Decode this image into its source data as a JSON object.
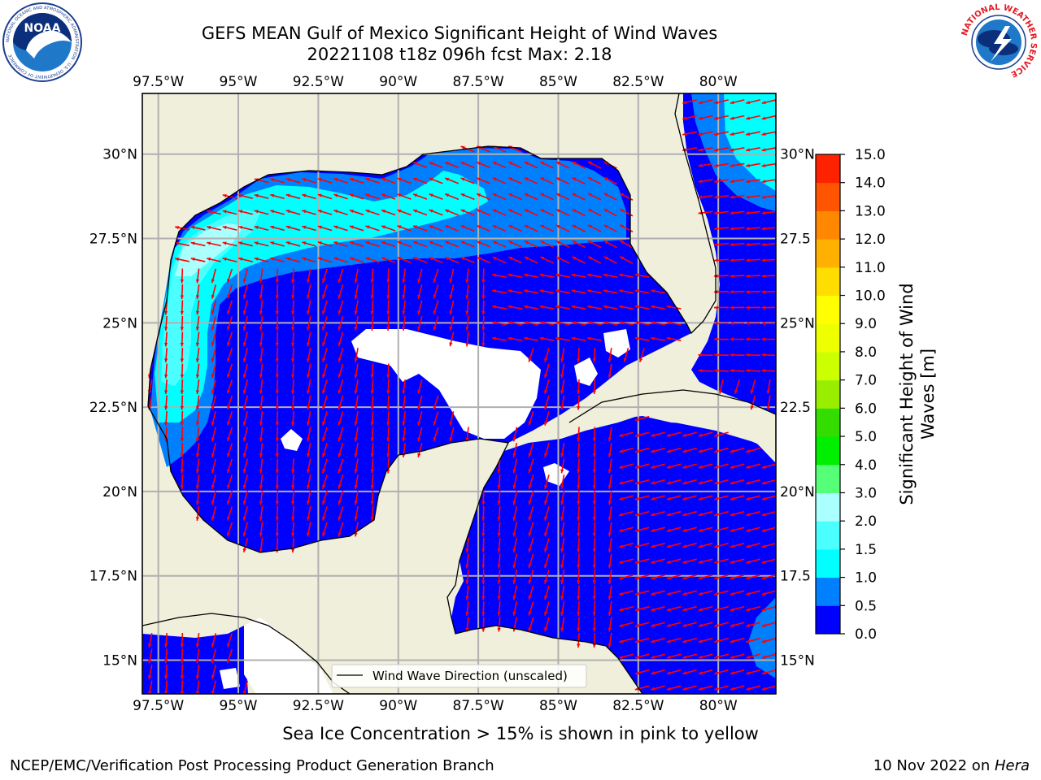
{
  "header": {
    "title_line1": "GEFS MEAN Gulf of Mexico Significant Height of Wind Waves",
    "title_line2": "20221108 t18z 096h fcst   Max: 2.18"
  },
  "logos": {
    "left": "noaa-logo",
    "right": "nws-logo",
    "noaa_text": "NOAA",
    "noaa_ring": "NATIONAL OCEANIC AND ATMOSPHERIC ADMINISTRATION · U.S. DEPARTMENT OF COMMERCE",
    "nws_ring": "NATIONAL WEATHER SERVICE"
  },
  "map": {
    "lon_labels": [
      "97.5°W",
      "95°W",
      "92.5°W",
      "90°W",
      "87.5°W",
      "85°W",
      "82.5°W",
      "80°W"
    ],
    "lat_labels_left": [
      "30°N",
      "27.5°N",
      "25°N",
      "22.5°N",
      "20°N",
      "17.5°N",
      "15°N"
    ],
    "lat_labels_right": [
      "30°N",
      "27.5",
      "25°N",
      "22.5",
      "20°N",
      "17.5",
      "15°N"
    ],
    "legend_label": "Wind Wave Direction (unscaled)",
    "colors": {
      "land": "#efefdc",
      "ocean_low": "#0000ff",
      "ocean_0_5": "#0080ff",
      "ocean_1_0": "#00ffff",
      "ocean_1_5": "#4cffff",
      "ocean_2_0": "#aaffff",
      "arrow": "#ff0000",
      "grid": "#b0b0b0"
    }
  },
  "colorbar": {
    "label_line1": "Significant Height of Wind",
    "label_line2": "Waves [m]",
    "ticks": [
      "15.0",
      "14.0",
      "13.0",
      "12.0",
      "11.0",
      "10.0",
      "9.0",
      "8.0",
      "7.0",
      "6.0",
      "5.0",
      "4.0",
      "3.0",
      "2.0",
      "1.5",
      "1.0",
      "0.5",
      "0.0"
    ],
    "colors": [
      "#0000ff",
      "#0080ff",
      "#00ffff",
      "#4cffff",
      "#aaffff",
      "#55ff77",
      "#00ee00",
      "#33dd00",
      "#99ee00",
      "#ccff00",
      "#eeff00",
      "#ffff00",
      "#ffdd00",
      "#ffb000",
      "#ff8800",
      "#ff5500",
      "#ff2200"
    ]
  },
  "footer": {
    "note": "Sea Ice Concentration > 15% is shown in pink to yellow",
    "left": "NCEP/EMC/Verification Post Processing Product Generation Branch",
    "right_date": "10 Nov 2022 on ",
    "right_machine": "Hera"
  }
}
